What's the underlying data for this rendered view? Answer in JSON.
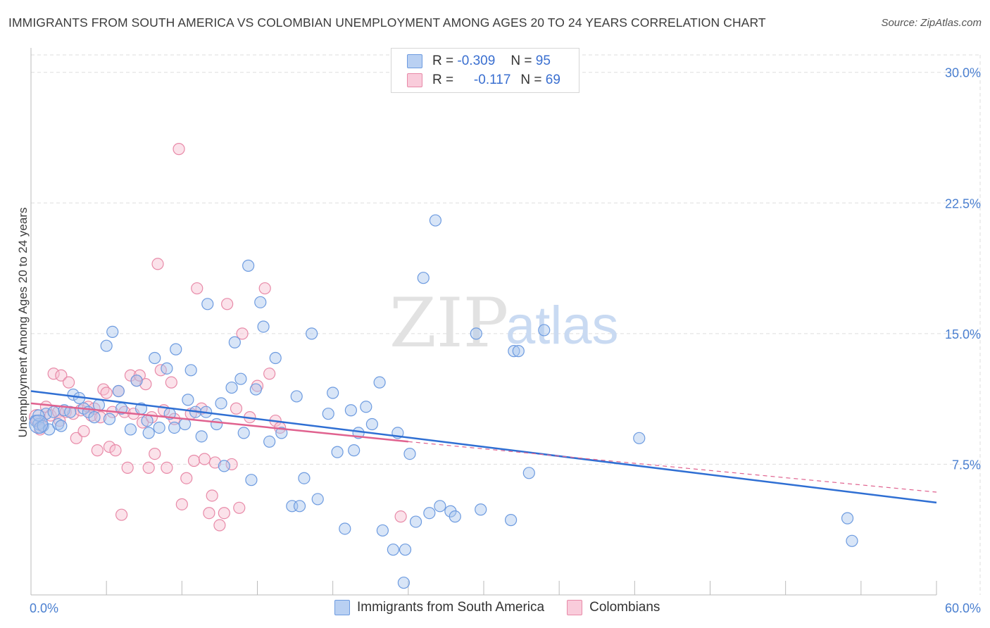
{
  "header": {
    "title": "IMMIGRANTS FROM SOUTH AMERICA VS COLOMBIAN UNEMPLOYMENT AMONG AGES 20 TO 24 YEARS CORRELATION CHART",
    "source": "Source: ZipAtlas.com"
  },
  "watermark": {
    "zip": "ZIP",
    "atlas": "atlas"
  },
  "legend": {
    "r_label": "R =",
    "n_label": "N =",
    "blue": {
      "r": "-0.309",
      "n": "95"
    },
    "pink": {
      "r": "-0.117",
      "n": "69"
    }
  },
  "colors": {
    "blue_fill": "#a9c6ee",
    "blue_stroke": "#6d9be0",
    "blue_line": "#2f6fd3",
    "pink_fill": "#f6bfd0",
    "pink_stroke": "#e88aa8",
    "pink_line": "#e0628f",
    "grid": "#dddddd",
    "tick_text": "#4a7fd0"
  },
  "chart_data": {
    "type": "scatter",
    "title": "IMMIGRANTS FROM SOUTH AMERICA VS COLOMBIAN UNEMPLOYMENT AMONG AGES 20 TO 24 YEARS CORRELATION CHART",
    "xlabel": "",
    "ylabel": "Unemployment Among Ages 20 to 24 years",
    "xlim": [
      0,
      60
    ],
    "ylim": [
      0,
      31
    ],
    "x_tick_labels": [
      "0.0%",
      "60.0%"
    ],
    "y_ticks": [
      7.5,
      15.0,
      22.5,
      30.0
    ],
    "y_tick_labels": [
      "7.5%",
      "15.0%",
      "22.5%",
      "30.0%"
    ],
    "series": [
      {
        "name": "Immigrants from South America",
        "color": "blue",
        "r": -0.309,
        "n": 95,
        "trend": {
          "x0": 0,
          "y0": 11.7,
          "x1": 60,
          "y1": 5.3
        },
        "points": [
          [
            0.3,
            10.0
          ],
          [
            0.5,
            9.8
          ],
          [
            0.6,
            9.6
          ],
          [
            0.8,
            9.7
          ],
          [
            1.0,
            10.4
          ],
          [
            1.2,
            9.5
          ],
          [
            1.5,
            10.5
          ],
          [
            1.8,
            9.8
          ],
          [
            2.2,
            10.6
          ],
          [
            2.6,
            10.5
          ],
          [
            2.8,
            11.5
          ],
          [
            3.2,
            11.3
          ],
          [
            3.5,
            10.7
          ],
          [
            3.8,
            10.5
          ],
          [
            4.2,
            10.2
          ],
          [
            4.5,
            10.9
          ],
          [
            5.2,
            10.1
          ],
          [
            5.4,
            15.1
          ],
          [
            5.8,
            11.7
          ],
          [
            5.0,
            14.3
          ],
          [
            6.0,
            10.7
          ],
          [
            6.6,
            9.5
          ],
          [
            7.0,
            12.3
          ],
          [
            7.3,
            10.7
          ],
          [
            7.7,
            10.0
          ],
          [
            7.8,
            9.3
          ],
          [
            8.2,
            13.6
          ],
          [
            8.5,
            9.6
          ],
          [
            9.0,
            13.0
          ],
          [
            9.2,
            10.4
          ],
          [
            9.5,
            9.6
          ],
          [
            9.6,
            14.1
          ],
          [
            10.2,
            9.8
          ],
          [
            10.4,
            11.2
          ],
          [
            10.6,
            12.9
          ],
          [
            10.9,
            10.5
          ],
          [
            11.3,
            9.1
          ],
          [
            11.6,
            10.5
          ],
          [
            11.7,
            16.7
          ],
          [
            12.3,
            9.8
          ],
          [
            12.6,
            11.0
          ],
          [
            12.8,
            7.4
          ],
          [
            13.3,
            11.9
          ],
          [
            13.5,
            14.5
          ],
          [
            13.9,
            12.4
          ],
          [
            14.1,
            9.3
          ],
          [
            14.4,
            18.9
          ],
          [
            14.6,
            6.6
          ],
          [
            14.9,
            11.8
          ],
          [
            15.2,
            16.8
          ],
          [
            15.4,
            15.4
          ],
          [
            15.8,
            8.8
          ],
          [
            16.2,
            13.6
          ],
          [
            16.6,
            9.3
          ],
          [
            17.3,
            5.1
          ],
          [
            17.6,
            11.4
          ],
          [
            17.8,
            5.1
          ],
          [
            18.1,
            6.7
          ],
          [
            18.6,
            15.0
          ],
          [
            19.0,
            5.5
          ],
          [
            19.7,
            10.4
          ],
          [
            20.0,
            11.6
          ],
          [
            20.3,
            8.2
          ],
          [
            20.8,
            3.8
          ],
          [
            21.2,
            10.6
          ],
          [
            21.4,
            8.3
          ],
          [
            21.7,
            9.3
          ],
          [
            22.2,
            10.8
          ],
          [
            22.6,
            9.8
          ],
          [
            23.1,
            12.2
          ],
          [
            23.3,
            3.7
          ],
          [
            24.3,
            9.3
          ],
          [
            24.0,
            2.6
          ],
          [
            24.7,
            0.7
          ],
          [
            24.8,
            2.6
          ],
          [
            25.1,
            8.1
          ],
          [
            25.5,
            4.2
          ],
          [
            26.0,
            18.2
          ],
          [
            26.8,
            21.5
          ],
          [
            27.1,
            5.1
          ],
          [
            26.4,
            4.7
          ],
          [
            27.8,
            4.8
          ],
          [
            28.1,
            4.5
          ],
          [
            29.5,
            15.0
          ],
          [
            29.8,
            4.9
          ],
          [
            31.8,
            4.3
          ],
          [
            32.0,
            14.0
          ],
          [
            32.3,
            14.0
          ],
          [
            33.0,
            7.0
          ],
          [
            34.0,
            15.2
          ],
          [
            40.3,
            9.0
          ],
          [
            54.1,
            4.4
          ],
          [
            54.4,
            3.1
          ],
          [
            0.5,
            10.3
          ],
          [
            2.0,
            9.7
          ]
        ]
      },
      {
        "name": "Colombians",
        "color": "pink",
        "r": -0.117,
        "n": 69,
        "trend": {
          "x0": 0,
          "y0": 11.0,
          "x1": 25,
          "y1": 8.8
        },
        "trend_ext": {
          "x0": 25,
          "y0": 8.8,
          "x1": 60,
          "y1": 5.9
        },
        "points": [
          [
            0.4,
            10.0
          ],
          [
            0.7,
            9.7
          ],
          [
            1.0,
            10.8
          ],
          [
            1.3,
            10.3
          ],
          [
            1.5,
            12.7
          ],
          [
            1.8,
            10.5
          ],
          [
            2.0,
            12.6
          ],
          [
            2.3,
            10.5
          ],
          [
            2.5,
            12.2
          ],
          [
            2.8,
            10.4
          ],
          [
            3.0,
            9.0
          ],
          [
            3.3,
            10.6
          ],
          [
            3.5,
            9.4
          ],
          [
            3.8,
            10.8
          ],
          [
            4.0,
            10.3
          ],
          [
            4.2,
            10.7
          ],
          [
            4.4,
            8.3
          ],
          [
            4.6,
            10.2
          ],
          [
            4.8,
            11.8
          ],
          [
            5.0,
            11.6
          ],
          [
            5.2,
            8.5
          ],
          [
            5.4,
            10.5
          ],
          [
            5.6,
            8.3
          ],
          [
            5.8,
            11.7
          ],
          [
            6.0,
            4.6
          ],
          [
            6.2,
            10.5
          ],
          [
            6.4,
            7.3
          ],
          [
            6.6,
            12.6
          ],
          [
            6.8,
            10.4
          ],
          [
            7.0,
            12.3
          ],
          [
            7.2,
            12.6
          ],
          [
            7.4,
            9.9
          ],
          [
            7.6,
            12.1
          ],
          [
            7.8,
            7.3
          ],
          [
            8.0,
            10.2
          ],
          [
            8.2,
            8.1
          ],
          [
            8.4,
            19.0
          ],
          [
            8.6,
            12.9
          ],
          [
            8.8,
            10.6
          ],
          [
            9.0,
            7.3
          ],
          [
            9.3,
            12.2
          ],
          [
            9.5,
            10.1
          ],
          [
            9.8,
            25.6
          ],
          [
            10.0,
            5.2
          ],
          [
            10.3,
            6.7
          ],
          [
            10.6,
            10.4
          ],
          [
            10.8,
            7.7
          ],
          [
            11.0,
            17.6
          ],
          [
            11.3,
            10.7
          ],
          [
            11.5,
            7.8
          ],
          [
            11.8,
            4.7
          ],
          [
            12.0,
            5.7
          ],
          [
            12.2,
            7.6
          ],
          [
            12.5,
            4.0
          ],
          [
            12.8,
            4.7
          ],
          [
            13.0,
            16.7
          ],
          [
            13.3,
            7.5
          ],
          [
            13.6,
            10.7
          ],
          [
            13.8,
            5.0
          ],
          [
            14.0,
            15.0
          ],
          [
            14.5,
            10.2
          ],
          [
            15.0,
            12.0
          ],
          [
            15.5,
            17.6
          ],
          [
            15.8,
            12.7
          ],
          [
            16.2,
            10.0
          ],
          [
            16.5,
            9.6
          ],
          [
            24.5,
            4.5
          ],
          [
            0.6,
            9.5
          ],
          [
            1.9,
            10.0
          ]
        ]
      }
    ]
  },
  "bottom_legend": {
    "blue_label": "Immigrants from South America",
    "pink_label": "Colombians"
  }
}
